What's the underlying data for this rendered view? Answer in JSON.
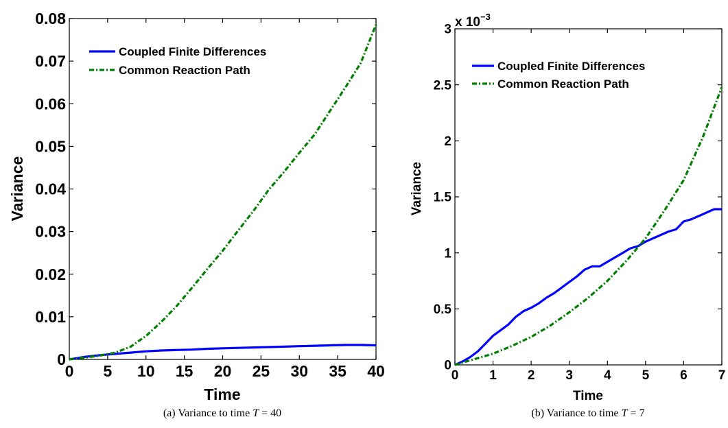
{
  "chart_data": [
    {
      "type": "line",
      "xlabel": "Time",
      "ylabel": "Variance",
      "xlim": [
        0,
        40
      ],
      "ylim": [
        0,
        0.08
      ],
      "xticks": [
        "0",
        "5",
        "10",
        "15",
        "20",
        "25",
        "30",
        "35",
        "40"
      ],
      "yticks": [
        "0",
        "0.01",
        "0.02",
        "0.03",
        "0.04",
        "0.05",
        "0.06",
        "0.07",
        "0.08"
      ],
      "legend_position": "top-left",
      "caption": "(a) Variance to time T = 40",
      "series": [
        {
          "name": "Coupled Finite Differences",
          "color": "#0000ff",
          "style": "solid",
          "x": [
            0,
            2,
            4,
            6,
            8,
            10,
            12,
            14,
            16,
            18,
            20,
            22,
            24,
            26,
            28,
            30,
            32,
            34,
            36,
            38,
            40
          ],
          "y": [
            0,
            0.0006,
            0.001,
            0.0013,
            0.0016,
            0.0019,
            0.0021,
            0.0022,
            0.0023,
            0.0025,
            0.0026,
            0.0027,
            0.0028,
            0.0029,
            0.003,
            0.0031,
            0.0032,
            0.0033,
            0.0034,
            0.0034,
            0.0033
          ]
        },
        {
          "name": "Common Reaction Path",
          "color": "#007f00",
          "style": "dashdot",
          "x": [
            0,
            2,
            4,
            6,
            8,
            10,
            12,
            14,
            16,
            18,
            20,
            22,
            24,
            26,
            28,
            30,
            32,
            34,
            36,
            38,
            40
          ],
          "y": [
            0,
            0.0004,
            0.0009,
            0.0016,
            0.003,
            0.0055,
            0.0088,
            0.0125,
            0.0168,
            0.0212,
            0.0255,
            0.0302,
            0.0348,
            0.0398,
            0.044,
            0.0485,
            0.0528,
            0.0583,
            0.0638,
            0.0695,
            0.0786
          ]
        }
      ]
    },
    {
      "type": "line",
      "xlabel": "Time",
      "ylabel": "Variance",
      "xlim": [
        0,
        7
      ],
      "ylim": [
        0,
        0.003
      ],
      "xticks": [
        "0",
        "1",
        "2",
        "3",
        "4",
        "5",
        "6",
        "7"
      ],
      "yticks": [
        "0",
        "0.5",
        "1",
        "1.5",
        "2",
        "2.5",
        "3"
      ],
      "y_multiplier": "x 10",
      "y_exponent": "−3",
      "legend_position": "top-left",
      "caption": "(b) Variance to time T = 7",
      "series": [
        {
          "name": "Coupled Finite Differences",
          "color": "#0000ff",
          "style": "solid",
          "x": [
            0,
            0.2,
            0.4,
            0.6,
            0.8,
            1.0,
            1.2,
            1.4,
            1.6,
            1.8,
            2.0,
            2.2,
            2.4,
            2.6,
            2.8,
            3.0,
            3.2,
            3.4,
            3.6,
            3.8,
            4.0,
            4.2,
            4.4,
            4.6,
            4.8,
            5.0,
            5.2,
            5.4,
            5.6,
            5.8,
            6.0,
            6.2,
            6.4,
            6.6,
            6.8,
            7.0
          ],
          "y": [
            0,
            3e-05,
            7e-05,
            0.00012,
            0.00019,
            0.00026,
            0.00031,
            0.00036,
            0.00043,
            0.00048,
            0.00051,
            0.00055,
            0.0006,
            0.00064,
            0.00069,
            0.00074,
            0.00079,
            0.00085,
            0.00088,
            0.00088,
            0.00092,
            0.00096,
            0.001,
            0.00104,
            0.00106,
            0.0011,
            0.00113,
            0.00116,
            0.00119,
            0.00121,
            0.00128,
            0.0013,
            0.00133,
            0.00136,
            0.00139,
            0.00139
          ]
        },
        {
          "name": "Common Reaction Path",
          "color": "#007f00",
          "style": "dashdot",
          "x": [
            0,
            0.5,
            1.0,
            1.5,
            2.0,
            2.5,
            3.0,
            3.5,
            4.0,
            4.5,
            5.0,
            5.5,
            6.0,
            6.5,
            7.0
          ],
          "y": [
            0,
            5e-05,
            0.0001,
            0.00017,
            0.00025,
            0.00035,
            0.00047,
            0.0006,
            0.00075,
            0.00093,
            0.00113,
            0.00138,
            0.00165,
            0.00203,
            0.00248
          ]
        }
      ]
    }
  ]
}
